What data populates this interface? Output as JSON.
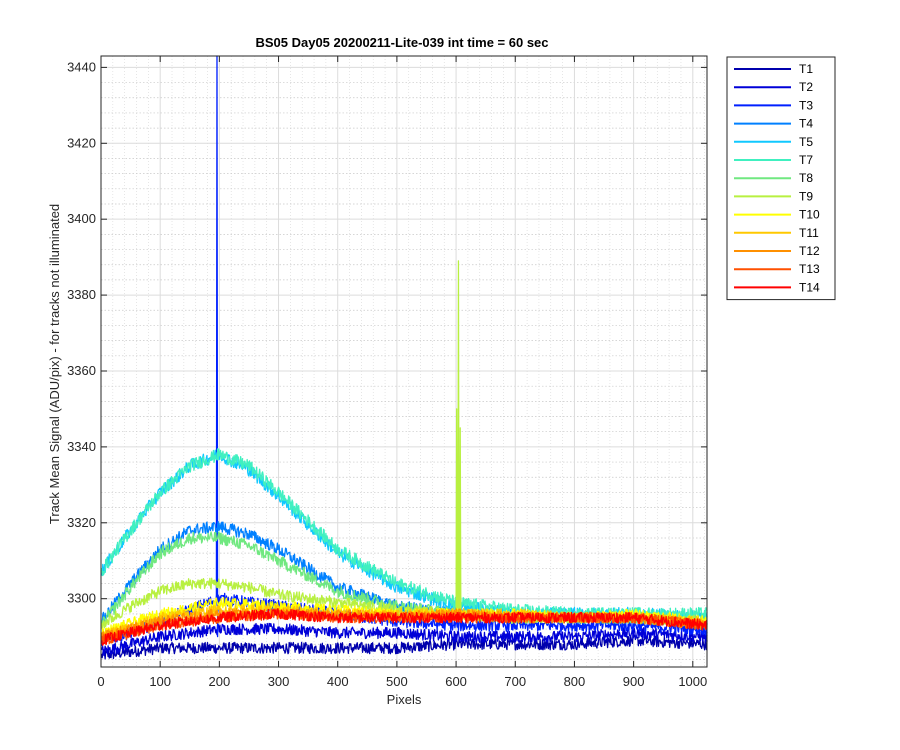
{
  "chart_data": {
    "type": "line",
    "title": "BS05 Day05 20200211-Lite-039 int time = 60 sec",
    "xlabel": "Pixels",
    "ylabel": "Track Mean Signal (ADU/pix) - for tracks not illuminated",
    "xlim": [
      0,
      1024
    ],
    "ylim": [
      3282,
      3443
    ],
    "x_ticks": [
      0,
      100,
      200,
      300,
      400,
      500,
      600,
      700,
      800,
      900,
      1000
    ],
    "y_ticks": [
      3300,
      3320,
      3340,
      3360,
      3380,
      3400,
      3420,
      3440
    ],
    "grid": "major and minor (dotted)",
    "legend_position": "outside top-right",
    "series": [
      {
        "name": "T1",
        "color": "#0000AD",
        "x": [
          0,
          50,
          100,
          150,
          200,
          300,
          400,
          500,
          600,
          700,
          800,
          900,
          1024
        ],
        "y": [
          3285,
          3286,
          3287,
          3287,
          3287,
          3287,
          3287,
          3287,
          3288,
          3288,
          3288,
          3289,
          3288
        ],
        "noise": 1.5
      },
      {
        "name": "T2",
        "color": "#0000D8",
        "x": [
          0,
          50,
          100,
          150,
          200,
          300,
          400,
          500,
          600,
          700,
          800,
          900,
          1024
        ],
        "y": [
          3286,
          3288,
          3290,
          3291,
          3292,
          3292,
          3291,
          3291,
          3290,
          3290,
          3290,
          3291,
          3290
        ],
        "noise": 1.5
      },
      {
        "name": "T3",
        "color": "#0020FF",
        "x": [
          0,
          50,
          100,
          150,
          200,
          300,
          400,
          500,
          600,
          700,
          800,
          900,
          1024
        ],
        "y": [
          3289,
          3291,
          3294,
          3297,
          3300,
          3298,
          3296,
          3294,
          3293,
          3293,
          3293,
          3293,
          3292
        ],
        "noise": 1.6,
        "spikes": [
          {
            "x": 196,
            "y": 3443
          },
          {
            "x": 197,
            "y": 3290
          }
        ]
      },
      {
        "name": "T4",
        "color": "#0080FF",
        "x": [
          0,
          50,
          100,
          150,
          200,
          250,
          300,
          400,
          500,
          600,
          700,
          800,
          900,
          1024
        ],
        "y": [
          3294,
          3304,
          3313,
          3318,
          3319,
          3317,
          3313,
          3303,
          3298,
          3296,
          3296,
          3295,
          3295,
          3294
        ],
        "noise": 1.6
      },
      {
        "name": "T5",
        "color": "#10C8FF",
        "x": [
          0,
          50,
          100,
          150,
          200,
          250,
          300,
          400,
          500,
          600,
          700,
          800,
          900,
          1024
        ],
        "y": [
          3307,
          3318,
          3328,
          3335,
          3338,
          3334,
          3327,
          3312,
          3303,
          3298,
          3296,
          3296,
          3296,
          3295
        ],
        "noise": 1.7
      },
      {
        "name": "T7",
        "color": "#40F0C0",
        "x": [
          0,
          50,
          100,
          150,
          200,
          250,
          300,
          400,
          500,
          600,
          700,
          800,
          900,
          1024
        ],
        "y": [
          3307,
          3318,
          3328,
          3335,
          3338,
          3335,
          3328,
          3313,
          3304,
          3299,
          3297,
          3296,
          3296,
          3296
        ],
        "noise": 1.7
      },
      {
        "name": "T8",
        "color": "#70E880",
        "x": [
          0,
          50,
          100,
          150,
          200,
          250,
          300,
          400,
          500,
          600,
          700,
          800,
          900,
          1024
        ],
        "y": [
          3293,
          3303,
          3312,
          3316,
          3316,
          3314,
          3310,
          3302,
          3298,
          3296,
          3295,
          3295,
          3295,
          3294
        ],
        "noise": 1.6
      },
      {
        "name": "T9",
        "color": "#B8F040",
        "x": [
          0,
          50,
          100,
          150,
          200,
          250,
          300,
          400,
          500,
          600,
          700,
          800,
          900,
          1024
        ],
        "y": [
          3293,
          3298,
          3302,
          3304,
          3304,
          3303,
          3301,
          3299,
          3297,
          3296,
          3295,
          3295,
          3295,
          3294
        ],
        "noise": 1.5,
        "spikes": [
          {
            "x": 601,
            "y": 3350
          },
          {
            "x": 604,
            "y": 3389
          },
          {
            "x": 607,
            "y": 3345
          }
        ]
      },
      {
        "name": "T10",
        "color": "#FFFF00",
        "x": [
          0,
          100,
          200,
          300,
          400,
          500,
          600,
          700,
          800,
          900,
          1024
        ],
        "y": [
          3291,
          3296,
          3299,
          3298,
          3297,
          3296,
          3296,
          3296,
          3295,
          3296,
          3294
        ],
        "noise": 1.4
      },
      {
        "name": "T11",
        "color": "#FFC800",
        "x": [
          0,
          100,
          200,
          300,
          400,
          500,
          600,
          700,
          800,
          900,
          1024
        ],
        "y": [
          3290,
          3295,
          3297,
          3297,
          3296,
          3296,
          3296,
          3296,
          3295,
          3295,
          3294
        ],
        "noise": 1.4
      },
      {
        "name": "T12",
        "color": "#FF9000",
        "x": [
          0,
          100,
          200,
          300,
          400,
          500,
          600,
          700,
          800,
          900,
          1024
        ],
        "y": [
          3290,
          3294,
          3296,
          3296,
          3296,
          3295,
          3296,
          3295,
          3295,
          3295,
          3293
        ],
        "noise": 1.4
      },
      {
        "name": "T13",
        "color": "#FF5000",
        "x": [
          0,
          100,
          200,
          300,
          400,
          500,
          600,
          700,
          800,
          900,
          1024
        ],
        "y": [
          3289,
          3293,
          3295,
          3296,
          3295,
          3295,
          3295,
          3295,
          3295,
          3295,
          3293
        ],
        "noise": 1.4
      },
      {
        "name": "T14",
        "color": "#FF0000",
        "x": [
          0,
          100,
          200,
          300,
          400,
          500,
          600,
          700,
          800,
          900,
          1024
        ],
        "y": [
          3289,
          3293,
          3295,
          3296,
          3295,
          3295,
          3295,
          3295,
          3295,
          3295,
          3293
        ],
        "noise": 1.4
      }
    ]
  }
}
